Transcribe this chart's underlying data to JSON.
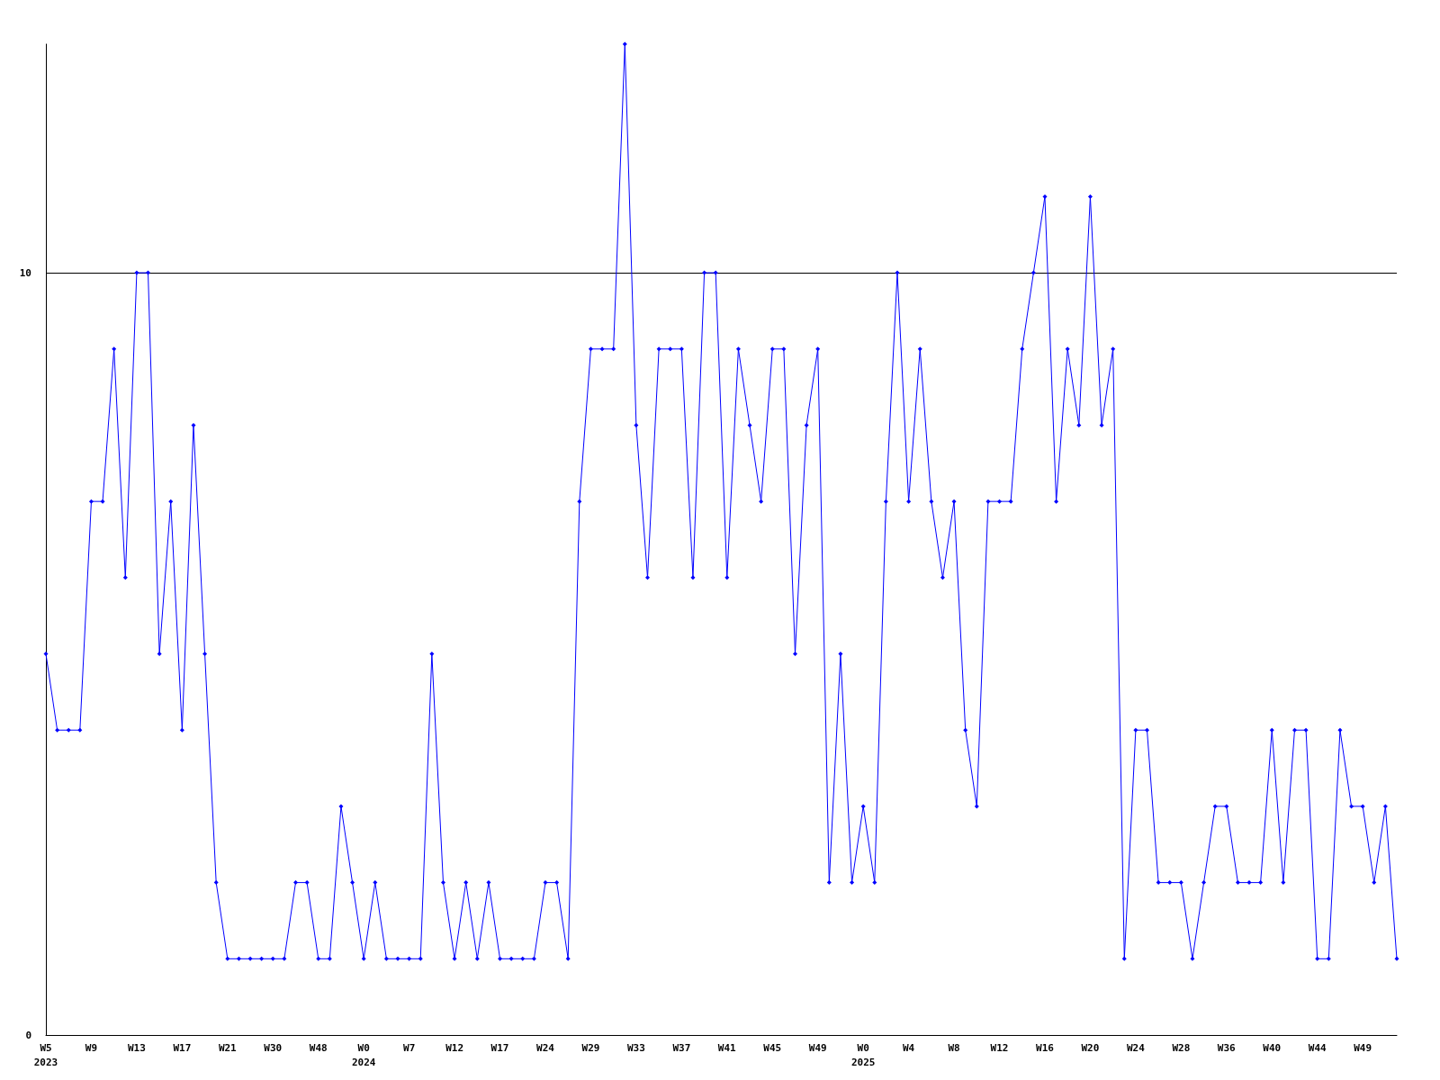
{
  "chart_data": {
    "type": "line",
    "categories": [
      "W5\n2023",
      null,
      null,
      null,
      "W9",
      null,
      null,
      null,
      "W13",
      null,
      null,
      null,
      "W17",
      null,
      null,
      null,
      "W21",
      null,
      null,
      null,
      "W30",
      null,
      null,
      null,
      "W48",
      null,
      null,
      null,
      "W0\n2024",
      null,
      null,
      null,
      "W7",
      null,
      null,
      null,
      "W12",
      null,
      null,
      null,
      "W17",
      null,
      null,
      null,
      "W24",
      null,
      null,
      null,
      "W29",
      null,
      null,
      null,
      "W33",
      null,
      null,
      null,
      "W37",
      null,
      null,
      null,
      "W41",
      null,
      null,
      null,
      "W45",
      null,
      null,
      null,
      "W49",
      null,
      null,
      null,
      "W0\n2025",
      null,
      null,
      null,
      "W4",
      null,
      null,
      null,
      "W8",
      null,
      null,
      null,
      "W12",
      null,
      null,
      null,
      "W16",
      null,
      null,
      null,
      "W20",
      null,
      null,
      null,
      "W24",
      null,
      null,
      null,
      "W28",
      null,
      null,
      null,
      "W36",
      null,
      null,
      null,
      "W40",
      null,
      null,
      null,
      "W44",
      null,
      null,
      null,
      "W49",
      null,
      null,
      null
    ],
    "series": [
      {
        "color": "#0000ff",
        "values": [
          5,
          4,
          4,
          4,
          7,
          7,
          9,
          6,
          10,
          10,
          5,
          7,
          4,
          8,
          5,
          2,
          1,
          1,
          1,
          1,
          1,
          1,
          2,
          2,
          1,
          1,
          3,
          2,
          1,
          2,
          1,
          1,
          1,
          1,
          5,
          2,
          1,
          2,
          1,
          2,
          1,
          1,
          1,
          1,
          2,
          2,
          1,
          7,
          9,
          9,
          9,
          13,
          8,
          6,
          9,
          9,
          9,
          6,
          10,
          10,
          6,
          9,
          8,
          7,
          9,
          9,
          5,
          8,
          9,
          2,
          5,
          2,
          3,
          2,
          7,
          10,
          7,
          9,
          7,
          6,
          7,
          4,
          3,
          7,
          7,
          7,
          9,
          10,
          11,
          7,
          9,
          8,
          11,
          8,
          9,
          1,
          4,
          4,
          2,
          2,
          2,
          1,
          2,
          3,
          3,
          2,
          2,
          2,
          4,
          2,
          4,
          4,
          1,
          1,
          4,
          3,
          3,
          2,
          3,
          1
        ]
      }
    ],
    "ylim": [
      0,
      13
    ],
    "yticks": [
      0,
      10
    ],
    "grid": "y",
    "marker": "diamond",
    "line_style": "solid"
  }
}
